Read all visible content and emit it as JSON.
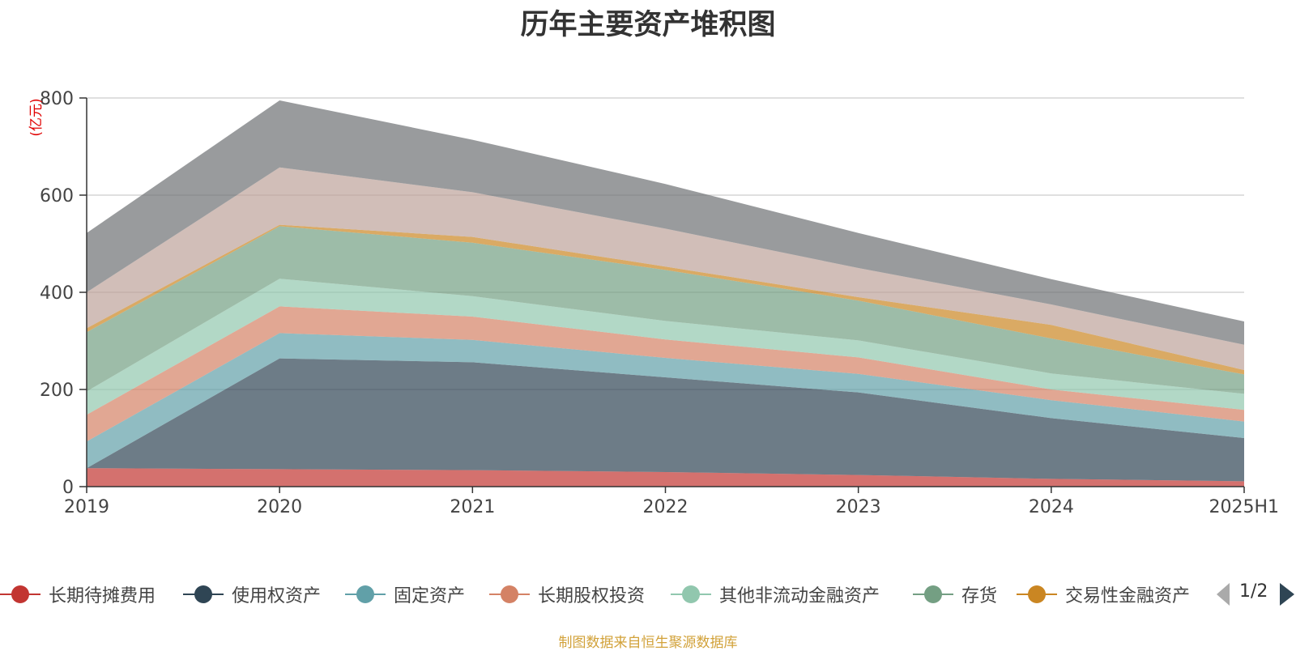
{
  "chart_data": {
    "type": "area",
    "stacked": true,
    "title": "历年主要资产堆积图",
    "ylabel": "(亿元)",
    "xlabel": "",
    "categories": [
      "2019",
      "2020",
      "2021",
      "2022",
      "2023",
      "2024",
      "2025H1"
    ],
    "ylim": [
      0,
      800
    ],
    "yticks": [
      "0",
      "200",
      "400",
      "600",
      "800"
    ],
    "grid": true,
    "legend_position": "bottom",
    "series": [
      {
        "name": "长期待摊费用",
        "color": "#c23531",
        "values": [
          38,
          36,
          34,
          30,
          24,
          16,
          11
        ]
      },
      {
        "name": "使用权资产",
        "color": "#2f4554",
        "values": [
          0,
          228,
          222,
          195,
          170,
          125,
          89
        ]
      },
      {
        "name": "固定资产",
        "color": "#61a0a8",
        "values": [
          55,
          52,
          46,
          40,
          38,
          37,
          34
        ]
      },
      {
        "name": "长期股权投资",
        "color": "#d48265",
        "values": [
          55,
          55,
          48,
          38,
          34,
          22,
          24
        ]
      },
      {
        "name": "其他非流动金融资产",
        "color": "#91c7ae",
        "values": [
          48,
          57,
          42,
          38,
          35,
          33,
          33
        ]
      },
      {
        "name": "存货",
        "color": "#749f83",
        "values": [
          122,
          108,
          110,
          105,
          82,
          72,
          40
        ]
      },
      {
        "name": "交易性金融资产",
        "color": "#ca8622",
        "values": [
          8,
          3,
          12,
          7,
          7,
          28,
          9
        ]
      },
      {
        "color": "#bda29a",
        "values": [
          74,
          118,
          92,
          78,
          60,
          42,
          52
        ]
      },
      {
        "color": "#6e7074",
        "values": [
          122,
          138,
          108,
          92,
          72,
          52,
          48
        ]
      }
    ]
  },
  "legend": {
    "items": [
      "长期待摊费用",
      "使用权资产",
      "固定资产",
      "长期股权投资",
      "其他非流动金融资产",
      "存货",
      "交易性金融资产"
    ],
    "page_text": "1/2"
  },
  "source_note": "制图数据来自恒生聚源数据库",
  "colors": {
    "axis": "#333333",
    "grid": "#cccccc",
    "ylabel": "#e00000",
    "pager_active": "#2f4554",
    "pager_inactive": "#aaaaaa"
  }
}
